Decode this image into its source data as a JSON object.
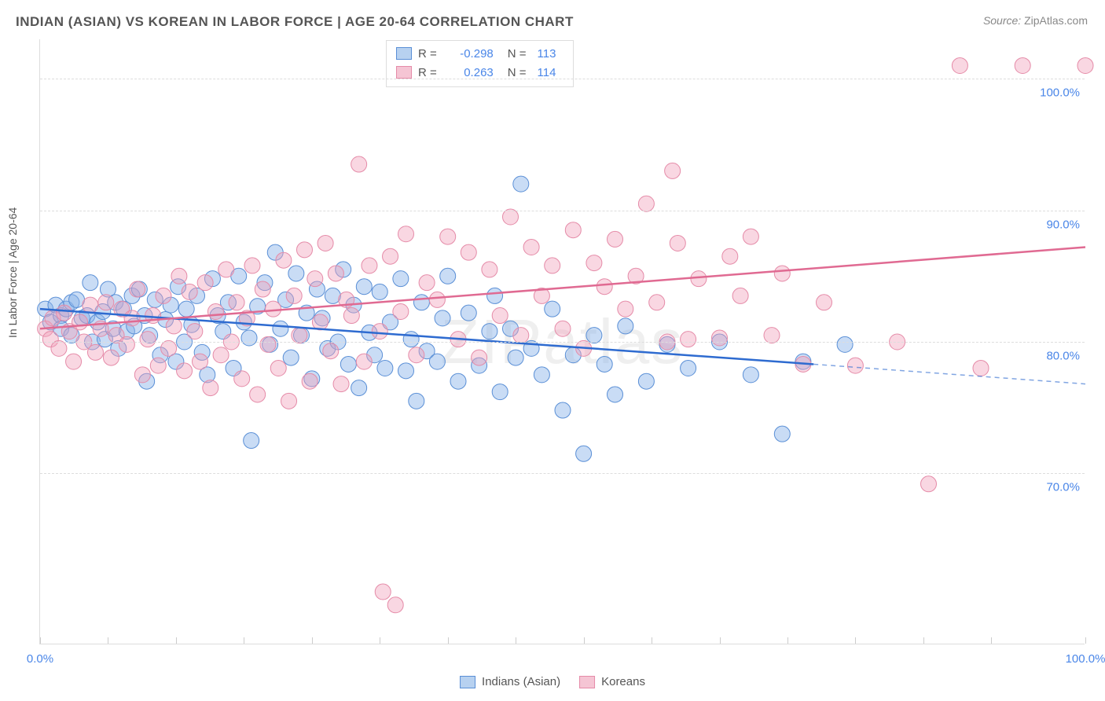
{
  "title": "INDIAN (ASIAN) VS KOREAN IN LABOR FORCE | AGE 20-64 CORRELATION CHART",
  "source_label": "Source:",
  "source_value": "ZipAtlas.com",
  "ylabel": "In Labor Force | Age 20-64",
  "watermark": "ZIPatlas",
  "chart": {
    "type": "scatter",
    "background_color": "#ffffff",
    "grid_color": "#dddddd",
    "xlim": [
      0,
      100
    ],
    "ylim": [
      57,
      103
    ],
    "xtick_label_start": "0.0%",
    "xtick_label_end": "100.0%",
    "xtick_positions": [
      0,
      6.5,
      13,
      19.5,
      26,
      32.5,
      39,
      45.5,
      52,
      58.5,
      65,
      71.5,
      78,
      84.5,
      91,
      100
    ],
    "yticks": [
      {
        "v": 70,
        "label": "70.0%"
      },
      {
        "v": 80,
        "label": "80.0%"
      },
      {
        "v": 90,
        "label": "90.0%"
      },
      {
        "v": 100,
        "label": "100.0%"
      }
    ],
    "series": [
      {
        "name": "Indians (Asian)",
        "marker_fill": "rgba(135,178,232,0.45)",
        "marker_stroke": "#5a8fd6",
        "line_color": "#2e6bd0",
        "swatch_fill": "#b7d1f0",
        "swatch_border": "#5a8fd6",
        "R": "-0.298",
        "N": "113",
        "trend": {
          "x1": 0,
          "y1": 82.5,
          "x2": 74,
          "y2": 78.3,
          "dash_to_x": 100,
          "dash_to_y": 76.8
        },
        "points": [
          [
            0.5,
            82.5
          ],
          [
            1,
            81.5
          ],
          [
            1.5,
            82.8
          ],
          [
            2,
            82
          ],
          [
            2,
            81
          ],
          [
            2.5,
            82.5
          ],
          [
            3,
            83
          ],
          [
            3,
            80.5
          ],
          [
            3.5,
            83.2
          ],
          [
            4,
            81.8
          ],
          [
            4.5,
            82
          ],
          [
            4.8,
            84.5
          ],
          [
            5,
            80
          ],
          [
            5.5,
            81.5
          ],
          [
            6,
            82.3
          ],
          [
            6.2,
            80.2
          ],
          [
            6.5,
            84
          ],
          [
            7,
            81
          ],
          [
            7.2,
            83
          ],
          [
            7.5,
            79.5
          ],
          [
            8,
            82.5
          ],
          [
            8.3,
            80.8
          ],
          [
            8.8,
            83.5
          ],
          [
            9,
            81.2
          ],
          [
            9.5,
            84
          ],
          [
            10,
            82
          ],
          [
            10.2,
            77
          ],
          [
            10.5,
            80.5
          ],
          [
            11,
            83.2
          ],
          [
            11.5,
            79
          ],
          [
            12,
            81.7
          ],
          [
            12.5,
            82.8
          ],
          [
            13,
            78.5
          ],
          [
            13.2,
            84.2
          ],
          [
            13.8,
            80
          ],
          [
            14,
            82.5
          ],
          [
            14.5,
            81.3
          ],
          [
            15,
            83.5
          ],
          [
            15.5,
            79.2
          ],
          [
            16,
            77.5
          ],
          [
            16.5,
            84.8
          ],
          [
            17,
            82
          ],
          [
            17.5,
            80.8
          ],
          [
            18,
            83
          ],
          [
            18.5,
            78
          ],
          [
            19,
            85
          ],
          [
            19.5,
            81.5
          ],
          [
            20,
            80.3
          ],
          [
            20.2,
            72.5
          ],
          [
            20.8,
            82.7
          ],
          [
            21.5,
            84.5
          ],
          [
            22,
            79.8
          ],
          [
            22.5,
            86.8
          ],
          [
            23,
            81
          ],
          [
            23.5,
            83.2
          ],
          [
            24,
            78.8
          ],
          [
            24.5,
            85.2
          ],
          [
            25,
            80.5
          ],
          [
            25.5,
            82.2
          ],
          [
            26,
            77.2
          ],
          [
            26.5,
            84
          ],
          [
            27,
            81.8
          ],
          [
            27.5,
            79.5
          ],
          [
            28,
            83.5
          ],
          [
            28.5,
            80
          ],
          [
            29,
            85.5
          ],
          [
            29.5,
            78.3
          ],
          [
            30,
            82.8
          ],
          [
            30.5,
            76.5
          ],
          [
            31,
            84.2
          ],
          [
            31.5,
            80.7
          ],
          [
            32,
            79
          ],
          [
            32.5,
            83.8
          ],
          [
            33,
            78
          ],
          [
            33.5,
            81.5
          ],
          [
            34.5,
            84.8
          ],
          [
            35,
            77.8
          ],
          [
            35.5,
            80.2
          ],
          [
            36,
            75.5
          ],
          [
            36.5,
            83
          ],
          [
            37,
            79.3
          ],
          [
            38,
            78.5
          ],
          [
            38.5,
            81.8
          ],
          [
            39,
            85
          ],
          [
            40,
            77
          ],
          [
            41,
            82.2
          ],
          [
            42,
            78.2
          ],
          [
            43,
            80.8
          ],
          [
            43.5,
            83.5
          ],
          [
            44,
            76.2
          ],
          [
            45,
            81
          ],
          [
            45.5,
            78.8
          ],
          [
            46,
            92
          ],
          [
            47,
            79.5
          ],
          [
            48,
            77.5
          ],
          [
            49,
            82.5
          ],
          [
            50,
            74.8
          ],
          [
            51,
            79
          ],
          [
            52,
            71.5
          ],
          [
            53,
            80.5
          ],
          [
            54,
            78.3
          ],
          [
            55,
            76
          ],
          [
            56,
            81.2
          ],
          [
            58,
            77
          ],
          [
            60,
            79.8
          ],
          [
            62,
            78
          ],
          [
            65,
            80
          ],
          [
            68,
            77.5
          ],
          [
            71,
            73
          ],
          [
            73,
            78.5
          ],
          [
            77,
            79.8
          ]
        ]
      },
      {
        "name": "Koreans",
        "marker_fill": "rgba(240,160,185,0.42)",
        "marker_stroke": "#e58ba8",
        "line_color": "#e06a92",
        "swatch_fill": "#f5c5d4",
        "swatch_border": "#e58ba8",
        "R": "0.263",
        "N": "114",
        "trend": {
          "x1": 0,
          "y1": 81,
          "x2": 100,
          "y2": 87.2
        },
        "points": [
          [
            0.5,
            81
          ],
          [
            1,
            80.2
          ],
          [
            1.2,
            81.8
          ],
          [
            1.8,
            79.5
          ],
          [
            2.3,
            82.2
          ],
          [
            2.8,
            80.8
          ],
          [
            3.2,
            78.5
          ],
          [
            3.8,
            81.5
          ],
          [
            4.2,
            80
          ],
          [
            4.8,
            82.8
          ],
          [
            5.3,
            79.2
          ],
          [
            5.8,
            81
          ],
          [
            6.3,
            83
          ],
          [
            6.8,
            78.8
          ],
          [
            7.3,
            80.5
          ],
          [
            7.8,
            82.5
          ],
          [
            8.3,
            79.8
          ],
          [
            8.8,
            81.8
          ],
          [
            9.3,
            84
          ],
          [
            9.8,
            77.5
          ],
          [
            10.3,
            80.2
          ],
          [
            10.8,
            82
          ],
          [
            11.3,
            78.2
          ],
          [
            11.8,
            83.5
          ],
          [
            12.3,
            79.5
          ],
          [
            12.8,
            81.2
          ],
          [
            13.3,
            85
          ],
          [
            13.8,
            77.8
          ],
          [
            14.3,
            83.8
          ],
          [
            14.8,
            80.8
          ],
          [
            15.3,
            78.5
          ],
          [
            15.8,
            84.5
          ],
          [
            16.3,
            76.5
          ],
          [
            16.8,
            82.3
          ],
          [
            17.3,
            79
          ],
          [
            17.8,
            85.5
          ],
          [
            18.3,
            80
          ],
          [
            18.8,
            83
          ],
          [
            19.3,
            77.2
          ],
          [
            19.8,
            81.8
          ],
          [
            20.3,
            85.8
          ],
          [
            20.8,
            76
          ],
          [
            21.3,
            84
          ],
          [
            21.8,
            79.8
          ],
          [
            22.3,
            82.5
          ],
          [
            22.8,
            78
          ],
          [
            23.3,
            86.2
          ],
          [
            23.8,
            75.5
          ],
          [
            24.3,
            83.5
          ],
          [
            24.8,
            80.5
          ],
          [
            25.3,
            87
          ],
          [
            25.8,
            77
          ],
          [
            26.3,
            84.8
          ],
          [
            26.8,
            81.5
          ],
          [
            27.3,
            87.5
          ],
          [
            27.8,
            79.3
          ],
          [
            28.3,
            85.2
          ],
          [
            28.8,
            76.8
          ],
          [
            29.3,
            83.2
          ],
          [
            29.8,
            82
          ],
          [
            30.5,
            93.5
          ],
          [
            31,
            78.5
          ],
          [
            31.5,
            85.8
          ],
          [
            32.5,
            80.8
          ],
          [
            32.8,
            61
          ],
          [
            33.5,
            86.5
          ],
          [
            34,
            60
          ],
          [
            34.5,
            82.3
          ],
          [
            35,
            88.2
          ],
          [
            36,
            79
          ],
          [
            37,
            84.5
          ],
          [
            38,
            83.2
          ],
          [
            39,
            88
          ],
          [
            40,
            80.2
          ],
          [
            41,
            86.8
          ],
          [
            42,
            78.8
          ],
          [
            43,
            85.5
          ],
          [
            44,
            82
          ],
          [
            45,
            89.5
          ],
          [
            46,
            80.5
          ],
          [
            47,
            87.2
          ],
          [
            48,
            83.5
          ],
          [
            49,
            85.8
          ],
          [
            50,
            81
          ],
          [
            51,
            88.5
          ],
          [
            52,
            79.5
          ],
          [
            53,
            86
          ],
          [
            54,
            84.2
          ],
          [
            55,
            87.8
          ],
          [
            56,
            82.5
          ],
          [
            57,
            85
          ],
          [
            58,
            90.5
          ],
          [
            59,
            83
          ],
          [
            60,
            80
          ],
          [
            60.5,
            93
          ],
          [
            61,
            87.5
          ],
          [
            62,
            80.2
          ],
          [
            63,
            84.8
          ],
          [
            65,
            80.3
          ],
          [
            66,
            86.5
          ],
          [
            67,
            83.5
          ],
          [
            68,
            88
          ],
          [
            70,
            80.5
          ],
          [
            71,
            85.2
          ],
          [
            73,
            78.3
          ],
          [
            75,
            83
          ],
          [
            78,
            78.2
          ],
          [
            82,
            80
          ],
          [
            85,
            69.2
          ],
          [
            88,
            101
          ],
          [
            90,
            78
          ],
          [
            94,
            101
          ],
          [
            100,
            101
          ]
        ]
      }
    ],
    "legend_bottom": [
      {
        "label": "Indians (Asian)",
        "swatch_fill": "#b7d1f0",
        "swatch_border": "#5a8fd6"
      },
      {
        "label": "Koreans",
        "swatch_fill": "#f5c5d4",
        "swatch_border": "#e58ba8"
      }
    ],
    "marker_radius": 10
  }
}
